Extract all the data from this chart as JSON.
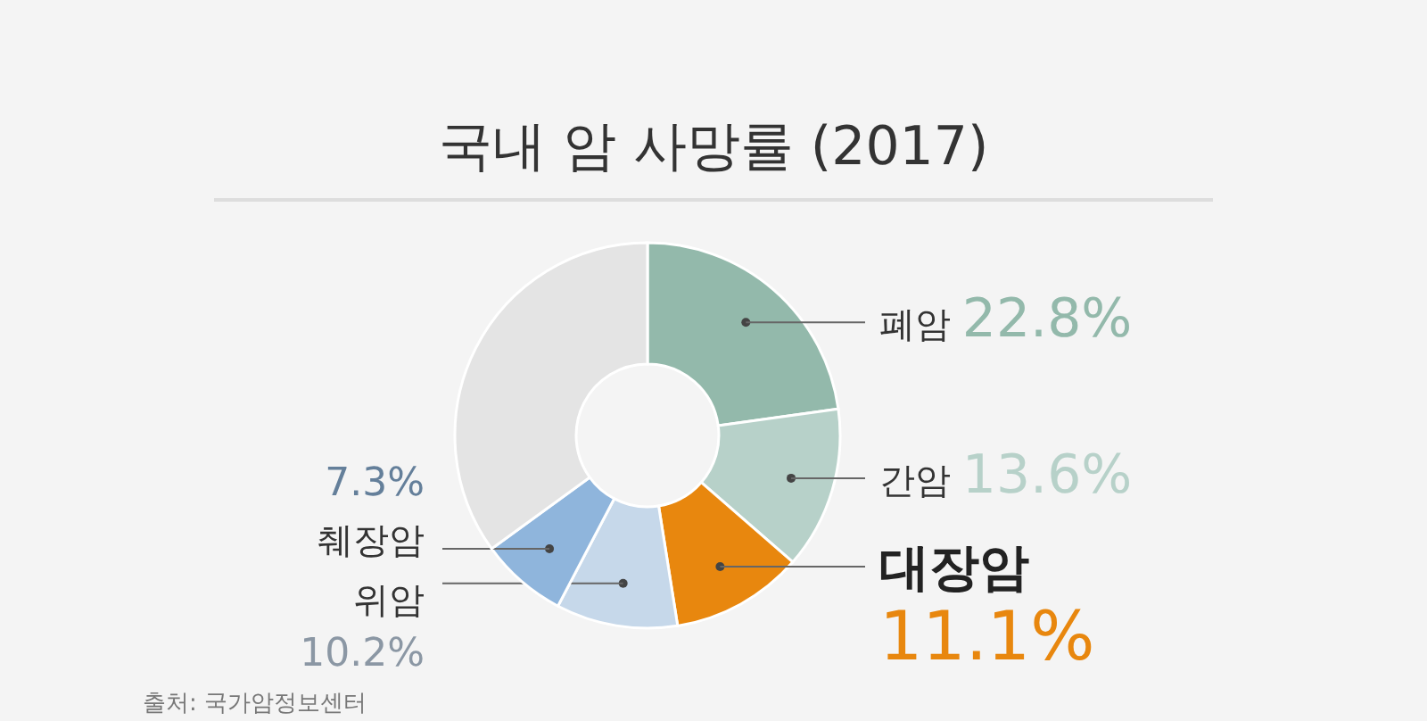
{
  "chart_data": {
    "type": "donut",
    "title": "국내 암 사망률 (2017)",
    "categories": [
      "폐암",
      "간암",
      "대장암",
      "위암",
      "췌장암",
      null
    ],
    "values": [
      22.8,
      13.6,
      11.1,
      10.2,
      7.3,
      35.0
    ],
    "value_labels": [
      "22.8%",
      "13.6%",
      "11.1%",
      "10.2%",
      "7.3%",
      null
    ],
    "colors": [
      "#93b9ab",
      "#b7d1c9",
      "#e8870e",
      "#c6d8ea",
      "#8fb5dc",
      "#e4e4e4"
    ],
    "annotations": [
      "출처: 국가암정보센터"
    ]
  }
}
